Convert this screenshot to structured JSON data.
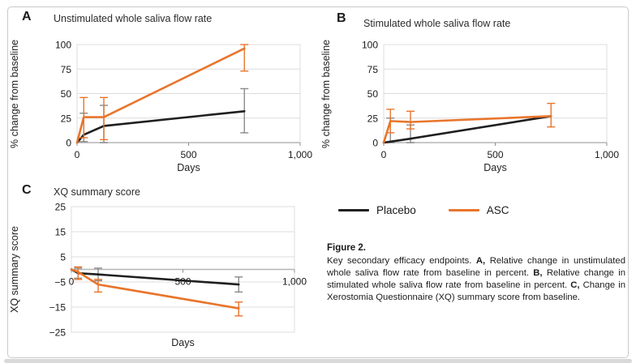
{
  "colors": {
    "placebo": "#1f1f1f",
    "placebo_error": "#8a8a8a",
    "asc": "#e8752c",
    "asc_error": "#e8752c",
    "grid": "#dcdcdc",
    "axis": "#b5b5b5",
    "text": "#1a1a1a"
  },
  "legend": {
    "items": [
      {
        "label": "Placebo",
        "color_key": "placebo"
      },
      {
        "label": "ASC",
        "color_key": "asc"
      }
    ]
  },
  "caption": {
    "title": "Figure 2.",
    "segments": [
      {
        "t": "Key secondary efficacy endpoints. ",
        "b": false
      },
      {
        "t": "A,",
        "b": true
      },
      {
        "t": " Relative change in unstimulated whole saliva flow rate from baseline in percent. ",
        "b": false
      },
      {
        "t": "B,",
        "b": true
      },
      {
        "t": " Relative change in stimulated whole saliva flow rate from baseline in percent. ",
        "b": false
      },
      {
        "t": "C,",
        "b": true
      },
      {
        "t": " Change in Xerostomia Questionnaire (XQ) summary score from baseline.",
        "b": false
      }
    ]
  },
  "chart_data": [
    {
      "id": "A",
      "type": "line",
      "panel_label": "A",
      "title": "Unstimulated whole saliva flow rate",
      "xlabel": "Days",
      "ylabel": "% change from baseline",
      "x": [
        0,
        30,
        120,
        750
      ],
      "xlim": [
        0,
        1000
      ],
      "xticks": [
        0,
        500,
        1000
      ],
      "xtick_labels": [
        "0",
        "500",
        "1,000"
      ],
      "ylim": [
        0,
        100
      ],
      "yticks": [
        0,
        25,
        50,
        75,
        100
      ],
      "ytick_labels": [
        "0",
        "25",
        "50",
        "75",
        "100"
      ],
      "axis_y": 0,
      "grid": true,
      "series": [
        {
          "name": "Placebo",
          "color_key": "placebo",
          "error_color_key": "placebo_error",
          "values": [
            0,
            8,
            17,
            32
          ],
          "err_low": [
            null,
            1,
            0,
            10
          ],
          "err_high": [
            null,
            30,
            38,
            55
          ]
        },
        {
          "name": "ASC",
          "color_key": "asc",
          "error_color_key": "asc_error",
          "values": [
            0,
            26,
            26,
            96
          ],
          "err_low": [
            null,
            5,
            3,
            73
          ],
          "err_high": [
            null,
            46,
            46,
            100
          ]
        }
      ]
    },
    {
      "id": "B",
      "type": "line",
      "panel_label": "B",
      "title": "Stimulated whole saliva flow rate",
      "xlabel": "Days",
      "ylabel": "% change from baseline",
      "x": [
        0,
        30,
        120,
        750
      ],
      "xlim": [
        0,
        1000
      ],
      "xticks": [
        0,
        500,
        1000
      ],
      "xtick_labels": [
        "0",
        "500",
        "1,000"
      ],
      "ylim": [
        0,
        100
      ],
      "yticks": [
        0,
        25,
        50,
        75,
        100
      ],
      "ytick_labels": [
        "0",
        "25",
        "50",
        "75",
        "100"
      ],
      "axis_y": 0,
      "grid": true,
      "series": [
        {
          "name": "Placebo",
          "color_key": "placebo",
          "error_color_key": "placebo_error",
          "values": [
            0,
            1,
            4,
            27
          ],
          "err_low": [
            null,
            0,
            0,
            null
          ],
          "err_high": [
            null,
            25,
            18,
            null
          ]
        },
        {
          "name": "ASC",
          "color_key": "asc",
          "error_color_key": "asc_error",
          "values": [
            0,
            22,
            21,
            27
          ],
          "err_low": [
            null,
            10,
            14,
            16
          ],
          "err_high": [
            null,
            34,
            32,
            40
          ]
        }
      ]
    },
    {
      "id": "C",
      "type": "line",
      "panel_label": "C",
      "title": "XQ summary score",
      "xlabel": "Days",
      "ylabel": "XQ summary score",
      "x": [
        0,
        30,
        120,
        750
      ],
      "xlim": [
        0,
        1000
      ],
      "xticks": [
        0,
        500,
        1000
      ],
      "xtick_labels": [
        "0",
        "500",
        "1,000"
      ],
      "ylim": [
        -25,
        25
      ],
      "yticks": [
        25,
        15,
        5,
        -5,
        -15,
        -25
      ],
      "ytick_labels": [
        "25",
        "15",
        "5",
        "−5",
        "−15",
        "−25"
      ],
      "axis_y": 0,
      "grid": true,
      "series": [
        {
          "name": "Placebo",
          "color_key": "placebo",
          "error_color_key": "placebo_error",
          "values": [
            0,
            -1.5,
            -2,
            -6
          ],
          "err_low": [
            null,
            -3.5,
            -4.5,
            -9
          ],
          "err_high": [
            null,
            0.5,
            0.5,
            -3
          ]
        },
        {
          "name": "ASC",
          "color_key": "asc",
          "error_color_key": "asc_error",
          "values": [
            0,
            -1,
            -6,
            -15.5
          ],
          "err_low": [
            null,
            -4,
            -9,
            -18.5
          ],
          "err_high": [
            null,
            1,
            -4,
            -13
          ]
        }
      ]
    }
  ]
}
